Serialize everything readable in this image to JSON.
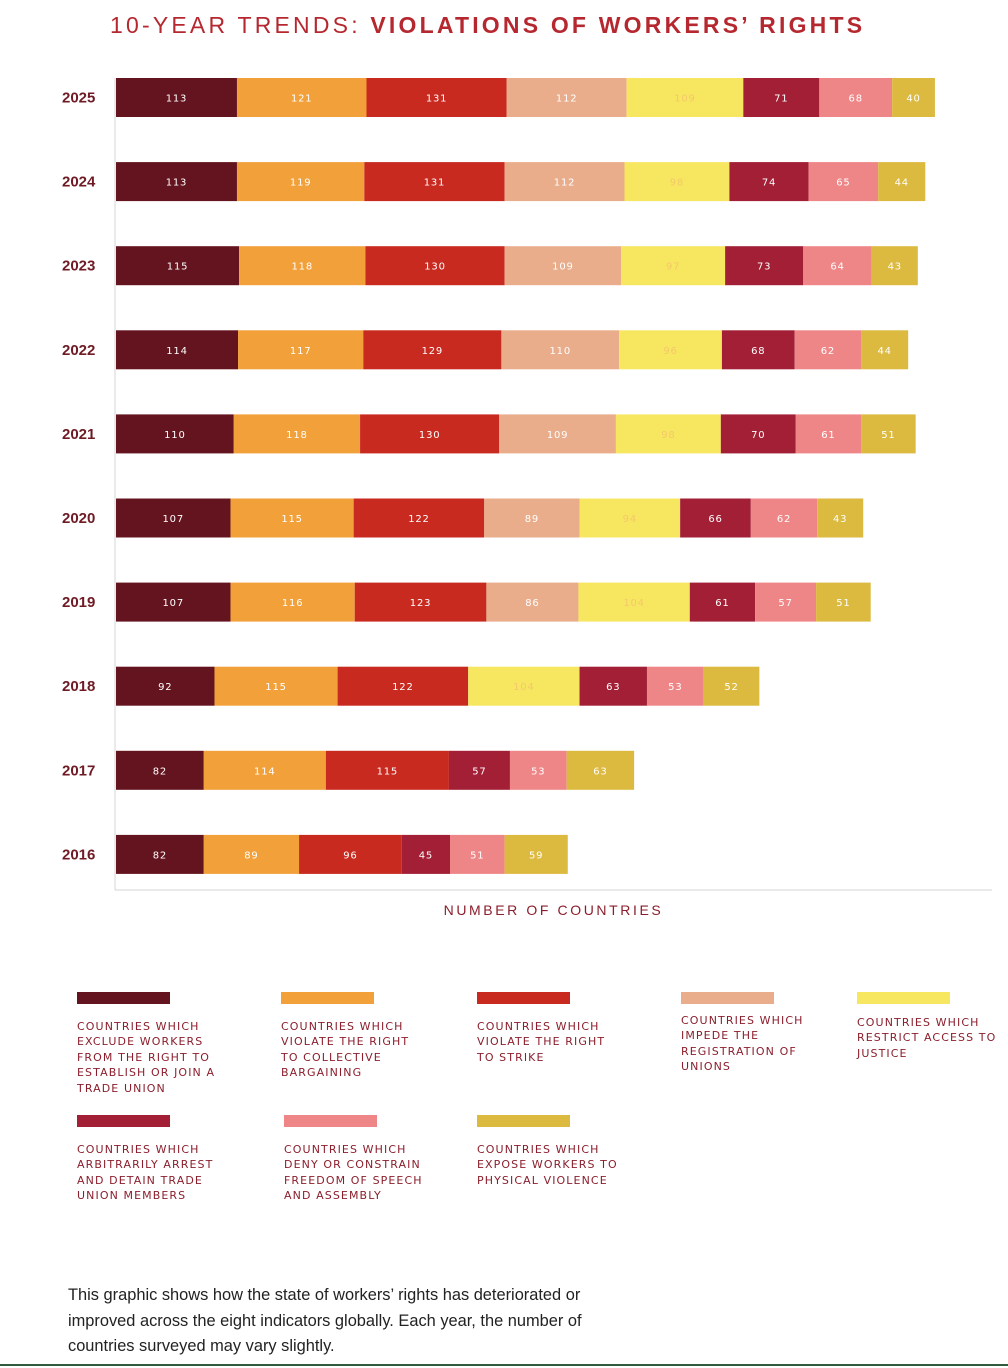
{
  "title": {
    "regular": "10-YEAR TRENDS: ",
    "bold": "VIOLATIONS OF WORKERS’ RIGHTS"
  },
  "caption": "This graphic shows how the state of workers’ rights has deteriorated or improved across the eight indicators globally. Each year, the number of countries surveyed may vary slightly.",
  "chart_data": {
    "type": "bar",
    "orientation": "horizontal",
    "stacked": true,
    "xlabel": "NUMBER OF COUNTRIES",
    "categories": [
      "2025",
      "2024",
      "2023",
      "2022",
      "2021",
      "2020",
      "2019",
      "2018",
      "2017",
      "2016"
    ],
    "series": [
      {
        "name": "COUNTRIES WHICH EXCLUDE WORKERS FROM THE RIGHT TO ESTABLISH OR JOIN A TRADE UNION",
        "color": "#64141f",
        "label_color": "#ffffff",
        "values": [
          113,
          113,
          115,
          114,
          110,
          107,
          107,
          92,
          82,
          82
        ]
      },
      {
        "name": "COUNTRIES WHICH VIOLATE THE RIGHT TO COLLECTIVE BARGAINING",
        "color": "#f2a03a",
        "label_color": "#ffffff",
        "values": [
          121,
          119,
          118,
          117,
          118,
          115,
          116,
          115,
          114,
          89
        ]
      },
      {
        "name": "COUNTRIES WHICH VIOLATE THE RIGHT TO STRIKE",
        "color": "#c92a20",
        "label_color": "#ffffff",
        "values": [
          131,
          131,
          130,
          129,
          130,
          122,
          123,
          122,
          115,
          96
        ]
      },
      {
        "name": "COUNTRIES WHICH IMPEDE THE REGISTRATION OF UNIONS",
        "color": "#e9ad8b",
        "label_color": "#ffffff",
        "values": [
          112,
          112,
          109,
          110,
          109,
          89,
          86,
          null,
          null,
          null
        ]
      },
      {
        "name": "COUNTRIES WHICH RESTRICT ACCESS TO JUSTICE",
        "color": "#f7e760",
        "label_color": "#f4c86a",
        "values": [
          109,
          98,
          97,
          96,
          98,
          94,
          104,
          104,
          null,
          null
        ]
      },
      {
        "name": "COUNTRIES WHICH ARBITRARILY ARREST AND DETAIN TRADE UNION MEMBERS",
        "color": "#a21f35",
        "label_color": "#ffffff",
        "values": [
          71,
          74,
          73,
          68,
          70,
          66,
          61,
          63,
          57,
          45
        ]
      },
      {
        "name": "COUNTRIES WHICH DENY OR CONSTRAIN FREEDOM OF SPEECH AND ASSEMBLY",
        "color": "#ee8687",
        "label_color": "#ffffff",
        "values": [
          68,
          65,
          64,
          62,
          61,
          62,
          57,
          53,
          53,
          51
        ]
      },
      {
        "name": "COUNTRIES WHICH EXPOSE WORKERS TO PHYSICAL VIOLENCE",
        "color": "#dcb93f",
        "label_color": "#ffffff",
        "values": [
          40,
          44,
          43,
          44,
          51,
          43,
          51,
          52,
          63,
          59
        ]
      }
    ],
    "grid": false,
    "legend_position": "bottom"
  }
}
